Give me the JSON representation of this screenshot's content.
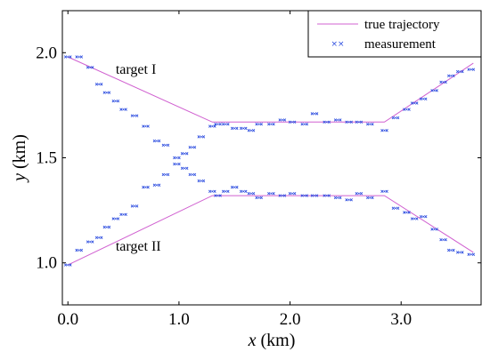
{
  "chart_data": {
    "type": "line",
    "xlabel": {
      "var": "x",
      "unit": " (km)"
    },
    "ylabel": {
      "var": "y",
      "unit": " (km)"
    },
    "xlim": [
      -0.05,
      3.72
    ],
    "ylim": [
      0.8,
      2.2
    ],
    "xticks": [
      0.0,
      1.0,
      2.0,
      3.0
    ],
    "xtick_labels": [
      "0.0",
      "1.0",
      "2.0",
      "3.0"
    ],
    "yticks": [
      1.0,
      1.5,
      2.0
    ],
    "ytick_labels": [
      "1.0",
      "1.5",
      "2.0"
    ],
    "grid": false,
    "legend": {
      "placement": "top-right",
      "entries": [
        {
          "label": "true trajectory",
          "kind": "line",
          "color": "#d060d0"
        },
        {
          "label": "measurement",
          "kind": "marker",
          "color": "#3050e0"
        }
      ]
    },
    "annotations": [
      {
        "text": "target I",
        "x": 0.43,
        "y": 1.92
      },
      {
        "text": "target II",
        "x": 0.43,
        "y": 1.08
      }
    ],
    "series": [
      {
        "kind": "true-trajectory",
        "color": "#d060d0",
        "x": [
          0.0,
          1.3,
          2.85,
          3.65
        ],
        "y": [
          1.98,
          1.67,
          1.67,
          1.95
        ]
      },
      {
        "kind": "true-trajectory",
        "color": "#d060d0",
        "x": [
          0.0,
          1.3,
          2.85,
          3.65
        ],
        "y": [
          0.99,
          1.32,
          1.32,
          1.05
        ]
      },
      {
        "kind": "measurement",
        "color": "#3050e0",
        "x": [
          0.0,
          0.1,
          0.2,
          0.28,
          0.35,
          0.43,
          0.5,
          0.6,
          0.7,
          0.8,
          0.88,
          0.98,
          1.05,
          1.12,
          1.2,
          1.3,
          1.35,
          1.42,
          1.5,
          1.58,
          1.65,
          1.72,
          1.83,
          1.93,
          2.02,
          2.13,
          2.22,
          2.33,
          2.43,
          2.53,
          2.62,
          2.72,
          2.85,
          2.95,
          3.05,
          3.12,
          3.2,
          3.3,
          3.38,
          3.45,
          3.53,
          3.63
        ],
        "y": [
          1.98,
          1.98,
          1.93,
          1.85,
          1.81,
          1.77,
          1.73,
          1.7,
          1.65,
          1.58,
          1.56,
          1.5,
          1.52,
          1.55,
          1.6,
          1.65,
          1.66,
          1.66,
          1.64,
          1.64,
          1.63,
          1.66,
          1.66,
          1.68,
          1.67,
          1.66,
          1.71,
          1.67,
          1.68,
          1.67,
          1.67,
          1.66,
          1.63,
          1.69,
          1.73,
          1.76,
          1.78,
          1.82,
          1.86,
          1.89,
          1.91,
          1.92
        ]
      },
      {
        "kind": "measurement",
        "color": "#3050e0",
        "x": [
          0.0,
          0.1,
          0.2,
          0.28,
          0.35,
          0.43,
          0.5,
          0.6,
          0.7,
          0.8,
          0.88,
          0.98,
          1.05,
          1.12,
          1.2,
          1.3,
          1.35,
          1.42,
          1.5,
          1.58,
          1.65,
          1.72,
          1.83,
          1.93,
          2.02,
          2.13,
          2.22,
          2.33,
          2.43,
          2.53,
          2.62,
          2.72,
          2.85,
          2.95,
          3.05,
          3.12,
          3.2,
          3.3,
          3.38,
          3.45,
          3.53,
          3.63
        ],
        "y": [
          0.99,
          1.06,
          1.1,
          1.12,
          1.17,
          1.21,
          1.23,
          1.27,
          1.36,
          1.37,
          1.42,
          1.47,
          1.45,
          1.42,
          1.39,
          1.34,
          1.32,
          1.34,
          1.36,
          1.34,
          1.33,
          1.31,
          1.33,
          1.32,
          1.33,
          1.32,
          1.32,
          1.32,
          1.31,
          1.3,
          1.33,
          1.31,
          1.34,
          1.26,
          1.24,
          1.21,
          1.22,
          1.16,
          1.11,
          1.06,
          1.05,
          1.04
        ]
      }
    ]
  }
}
